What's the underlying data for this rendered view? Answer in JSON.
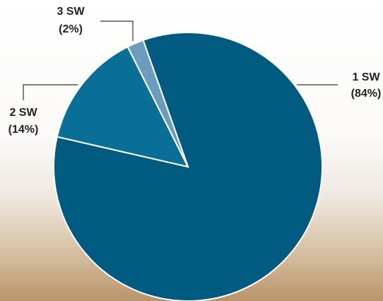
{
  "chart_data": {
    "type": "pie",
    "categories": [
      "1 SW",
      "2 SW",
      "3 SW"
    ],
    "values": [
      84,
      14,
      2
    ],
    "value_labels": [
      "(84%)",
      "(14%)",
      "(2%)"
    ],
    "colors": [
      "#015b81",
      "#0a6f97",
      "#6c9cbd"
    ]
  }
}
